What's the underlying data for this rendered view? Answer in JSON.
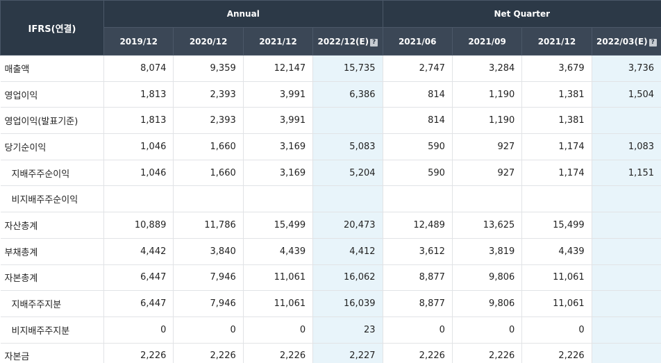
{
  "header": {
    "corner": "IFRS(연결)",
    "groups": [
      "Annual",
      "Net Quarter"
    ],
    "periods": [
      "2019/12",
      "2020/12",
      "2021/12",
      "2022/12(E)",
      "2021/06",
      "2021/09",
      "2021/12",
      "2022/03(E)"
    ],
    "estimate_icon": "?"
  },
  "rows": [
    {
      "label": "매출액",
      "sub": false,
      "values": [
        "8,074",
        "9,359",
        "12,147",
        "15,735",
        "2,747",
        "3,284",
        "3,679",
        "3,736"
      ]
    },
    {
      "label": "영업이익",
      "sub": false,
      "values": [
        "1,813",
        "2,393",
        "3,991",
        "6,386",
        "814",
        "1,190",
        "1,381",
        "1,504"
      ]
    },
    {
      "label": "영업이익(발표기준)",
      "sub": false,
      "values": [
        "1,813",
        "2,393",
        "3,991",
        "",
        "814",
        "1,190",
        "1,381",
        ""
      ]
    },
    {
      "label": "당기순이익",
      "sub": false,
      "values": [
        "1,046",
        "1,660",
        "3,169",
        "5,083",
        "590",
        "927",
        "1,174",
        "1,083"
      ]
    },
    {
      "label": "지배주주순이익",
      "sub": true,
      "values": [
        "1,046",
        "1,660",
        "3,169",
        "5,204",
        "590",
        "927",
        "1,174",
        "1,151"
      ]
    },
    {
      "label": "비지배주주순이익",
      "sub": true,
      "values": [
        "",
        "",
        "",
        "",
        "",
        "",
        "",
        ""
      ]
    },
    {
      "label": "자산총계",
      "sub": false,
      "values": [
        "10,889",
        "11,786",
        "15,499",
        "20,473",
        "12,489",
        "13,625",
        "15,499",
        ""
      ]
    },
    {
      "label": "부채총계",
      "sub": false,
      "values": [
        "4,442",
        "3,840",
        "4,439",
        "4,412",
        "3,612",
        "3,819",
        "4,439",
        ""
      ]
    },
    {
      "label": "자본총계",
      "sub": false,
      "values": [
        "6,447",
        "7,946",
        "11,061",
        "16,062",
        "8,877",
        "9,806",
        "11,061",
        ""
      ]
    },
    {
      "label": "지배주주지분",
      "sub": true,
      "values": [
        "6,447",
        "7,946",
        "11,061",
        "16,039",
        "8,877",
        "9,806",
        "11,061",
        ""
      ]
    },
    {
      "label": "비지배주주지분",
      "sub": true,
      "values": [
        "0",
        "0",
        "0",
        "23",
        "0",
        "0",
        "0",
        ""
      ]
    },
    {
      "label": "자본금",
      "sub": false,
      "values": [
        "2,226",
        "2,226",
        "2,226",
        "2,227",
        "2,226",
        "2,226",
        "2,226",
        ""
      ]
    }
  ],
  "colors": {
    "header_bg": "#2c3947",
    "estimate_bg": "#e8f4fa"
  }
}
